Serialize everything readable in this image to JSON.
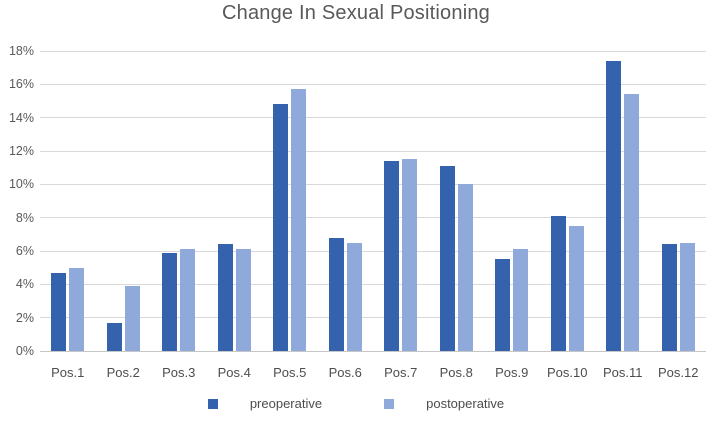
{
  "title": "Change In Sexual Positioning",
  "colors": {
    "preoperative": "#3562ac",
    "postoperative": "#8fa9db",
    "gridline": "#d9d9d9",
    "axis_line": "#c6c6c6",
    "title_text": "#595959",
    "tick_text": "#595959"
  },
  "legend": {
    "items": [
      {
        "label": "preoperative",
        "color": "#3562ac"
      },
      {
        "label": "postoperative",
        "color": "#8fa9db"
      }
    ]
  },
  "chart_data": {
    "type": "bar",
    "title": "Change In Sexual Positioning",
    "categories": [
      "Pos.1",
      "Pos.2",
      "Pos.3",
      "Pos.4",
      "Pos.5",
      "Pos.6",
      "Pos.7",
      "Pos.8",
      "Pos.9",
      "Pos.10",
      "Pos.11",
      "Pos.12"
    ],
    "series": [
      {
        "name": "preoperative",
        "color": "#3562ac",
        "values": [
          4.7,
          1.7,
          5.9,
          6.4,
          14.8,
          6.8,
          11.4,
          11.1,
          5.5,
          8.1,
          17.4,
          6.4
        ]
      },
      {
        "name": "postoperative",
        "color": "#8fa9db",
        "values": [
          5.0,
          3.9,
          6.1,
          6.1,
          15.7,
          6.5,
          11.5,
          10.0,
          6.1,
          7.5,
          15.4,
          6.5
        ]
      }
    ],
    "xlabel": "",
    "ylabel": "",
    "y_axis": {
      "min": 0,
      "max": 18,
      "step": 2,
      "tick_suffix": "%"
    },
    "ylim": [
      0,
      18
    ],
    "grid": true,
    "legend_position": "bottom"
  }
}
